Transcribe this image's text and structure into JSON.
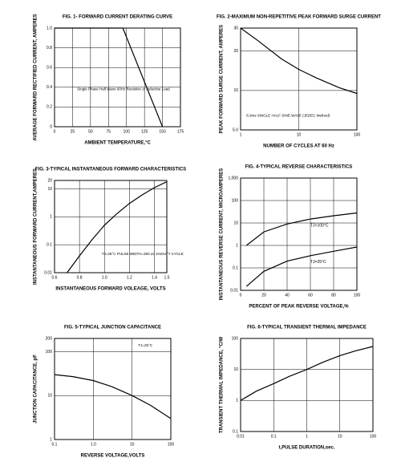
{
  "chart_data": [
    {
      "type": "line",
      "title": "FIG. 1- FORWARD CURRENT DERATING CURVE",
      "xlabel": "AMBIENT TEMPERATURE,°C",
      "ylabel": "AVERAGE FORWARD RECTIFIED CURRENT, AMPERES",
      "annotation": "Single Phase Half Wave 60Hz Resistive or Inductive Load",
      "x": [
        0,
        95,
        150
      ],
      "values": [
        1,
        1,
        0
      ],
      "color": "#000000",
      "xlim": [
        0,
        175
      ],
      "xticks": [
        0,
        25,
        50,
        75,
        100,
        125,
        150,
        175
      ],
      "ylim": [
        0,
        1
      ],
      "yticks": [
        0,
        0.2,
        0.4,
        0.6,
        0.8,
        {
          "value": 1,
          "label": "1.0"
        }
      ],
      "grid": true
    },
    {
      "type": "line",
      "title": "FIG. 2-MAXIMUM NON-REPETITIVE PEAK FORWARD SURGE CURRENT",
      "xlabel": "NUMBER OF CYCLES AT 60 Hz",
      "ylabel": "PEAK FORWARD SURGE CURRENT, AMPERES",
      "annotation": "8.3ms SINGLE HALF SINE-WAVE (JEDEC Method)",
      "x": [
        1,
        2,
        5,
        10,
        20,
        50,
        100
      ],
      "values": [
        30,
        24,
        17.5,
        14.5,
        12.5,
        10.5,
        9.5
      ],
      "color": "#000000",
      "xlim": [
        1,
        100
      ],
      "xticks": [
        1,
        10,
        100
      ],
      "xlog": true,
      "ylim": [
        5,
        30
      ],
      "yticks": [
        {
          "value": 5,
          "label": "5.0"
        },
        10,
        20,
        30
      ],
      "ylog": true,
      "grid": true
    },
    {
      "type": "line",
      "title": "FIG. 3-TYPICAL INSTANTANEOUS FORWARD CHARACTERISTICS",
      "xlabel": "INSTANTANEOUS FORWARD VOLEAGE, VOLTS",
      "ylabel": "INSTANTANEOUS FORWARD CURRENT,AMPERES",
      "annotation": "TJ=25°C PULSE WIDTH=300 us 1%DUTY CYCLE",
      "x": [
        0.7,
        0.8,
        0.9,
        1.0,
        1.1,
        1.2,
        1.3,
        1.4,
        1.5
      ],
      "values": [
        0.01,
        0.04,
        0.15,
        0.5,
        1.3,
        3,
        6,
        11,
        18
      ],
      "color": "#000000",
      "xlim": [
        0.6,
        1.5
      ],
      "xticks": [
        0.6,
        0.8,
        {
          "value": 1,
          "label": "1.0"
        },
        1.2,
        1.4,
        1.5
      ],
      "ylim": [
        0.01,
        20
      ],
      "yticks": [
        0.01,
        0.1,
        1,
        10,
        20
      ],
      "ylog": true,
      "grid": true
    },
    {
      "type": "line",
      "title": "FIG. 4-TYPICAL REVERSE CHARACTERISTICS",
      "xlabel": "PERCENT OF PEAK REVERSE VOLTAGE,%",
      "ylabel": "INSTANTANEOUS REVERSE CURRENT, MICROAMPERES",
      "x": [
        5,
        20,
        40,
        60,
        80,
        100
      ],
      "series": [
        {
          "name": "TJ=100°C",
          "color": "#000000",
          "values": [
            1,
            4,
            9,
            15,
            21,
            28
          ]
        },
        {
          "name": "TJ=25°C",
          "color": "#000000",
          "values": [
            0.015,
            0.07,
            0.2,
            0.35,
            0.55,
            0.85
          ]
        }
      ],
      "xlim": [
        0,
        100
      ],
      "xticks": [
        0,
        20,
        40,
        60,
        80,
        100
      ],
      "ylim": [
        0.01,
        1000
      ],
      "yticks": [
        0.01,
        0.1,
        1,
        10,
        100,
        {
          "value": 1000,
          "label": "1,000"
        }
      ],
      "ylog": true,
      "grid": true
    },
    {
      "type": "line",
      "title": "FIG. 5-TYPICAL JUNCTION CAPACITANCE",
      "xlabel": "REVERSE VOLTAGE,VOLTS",
      "ylabel": "JUNCTION CAPACITANCE, pF",
      "annotation": "TJ=25°C",
      "x": [
        0.1,
        0.3,
        1,
        3,
        10,
        30,
        100
      ],
      "values": [
        30,
        27,
        22,
        16,
        10,
        6,
        3
      ],
      "color": "#000000",
      "xlim": [
        0.1,
        100
      ],
      "xticks": [
        0.1,
        {
          "value": 1,
          "label": "1.0"
        },
        10,
        100
      ],
      "xlog": true,
      "ylim": [
        1,
        200
      ],
      "yticks": [
        1,
        10,
        100,
        200
      ],
      "ylog": true,
      "grid": true
    },
    {
      "type": "line",
      "title": "FIG. 6-TYPICAL TRANSIENT THERMAL IMPEDANCE",
      "xlabel": "t,PULSE DURATION,sec.",
      "ylabel": "TRANSIENT THERMAL IMPEDANCE, °C/W",
      "x": [
        0.01,
        0.03,
        0.1,
        0.3,
        1,
        3,
        10,
        30,
        100
      ],
      "values": [
        1,
        2,
        3.5,
        6,
        10,
        17,
        28,
        40,
        55
      ],
      "color": "#000000",
      "xlim": [
        0.01,
        100
      ],
      "xticks": [
        0.01,
        0.1,
        1,
        10,
        100
      ],
      "xlog": true,
      "ylim": [
        0.1,
        100
      ],
      "yticks": [
        0.1,
        1,
        10,
        100
      ],
      "ylog": true,
      "grid": true
    }
  ]
}
